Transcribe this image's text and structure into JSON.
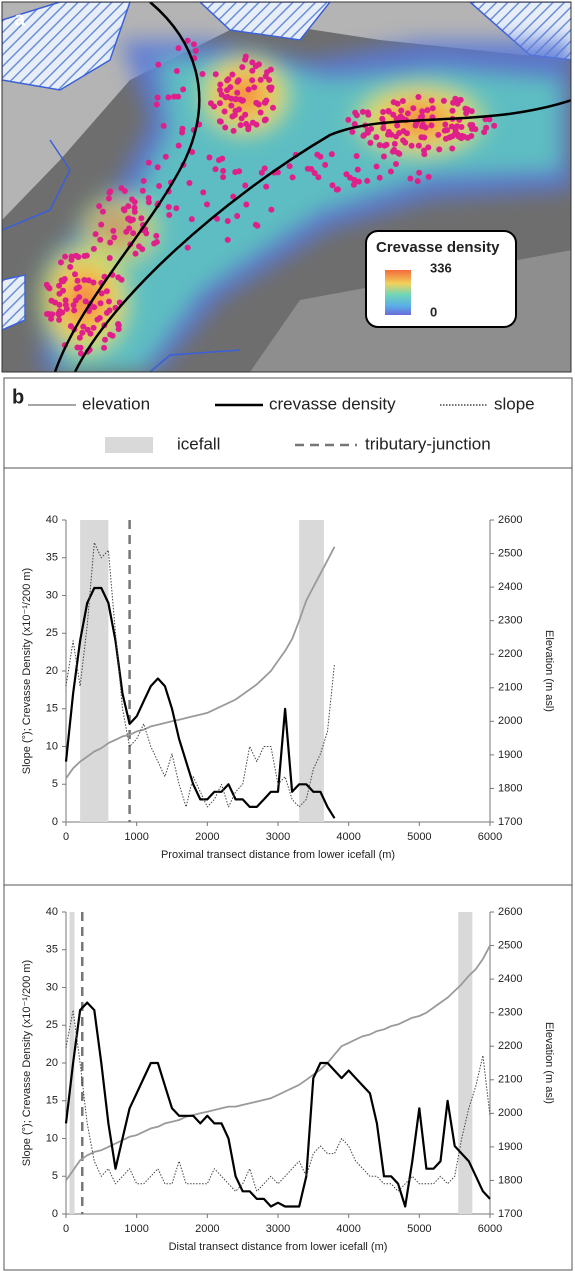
{
  "map": {
    "label": "a",
    "legend_title": "Crevasse density",
    "max": 336,
    "min": 0
  },
  "legend": {
    "label": "b",
    "items": [
      {
        "name": "elevation",
        "color": "#9a9a9a",
        "style": "solid"
      },
      {
        "name": "crevasse density",
        "color": "#000000",
        "style": "solid"
      },
      {
        "name": "slope",
        "color": "#444444",
        "style": "dotted"
      },
      {
        "name": "icefall",
        "color": "#d9d9d9",
        "style": "band"
      },
      {
        "name": "tributary-junction",
        "color": "#777777",
        "style": "dashed"
      }
    ]
  },
  "chart_data": [
    {
      "type": "line",
      "x_label": "Proximal transect distance from lower icefall (m)",
      "y_label": "Slope (°); Crevasse Density (x10⁻¹/200 m)",
      "y2_label": "Elevation (m asl)",
      "xlim": [
        0,
        6000
      ],
      "xticks": [
        0,
        1000,
        2000,
        3000,
        4000,
        5000,
        6000
      ],
      "ylim": [
        0,
        40
      ],
      "yticks": [
        0,
        5,
        10,
        15,
        20,
        25,
        30,
        35,
        40
      ],
      "y2lim": [
        1700,
        2600
      ],
      "y2ticks": [
        1700,
        1800,
        1900,
        2000,
        2100,
        2200,
        2300,
        2400,
        2500,
        2600
      ],
      "bands": [
        [
          200,
          600
        ],
        [
          3300,
          3650
        ]
      ],
      "band_color": "#d9d9d9",
      "junction": 900,
      "junction_color": "#777777",
      "x": [
        0,
        100,
        200,
        300,
        400,
        500,
        600,
        700,
        800,
        900,
        1000,
        1100,
        1200,
        1300,
        1400,
        1500,
        1600,
        1700,
        1800,
        1900,
        2000,
        2100,
        2200,
        2300,
        2400,
        2500,
        2600,
        2700,
        2800,
        2900,
        3000,
        3100,
        3200,
        3300,
        3400,
        3500,
        3600,
        3700,
        3800
      ],
      "series": [
        {
          "color": "#9a9a9a",
          "style": "solid",
          "axis": "y2",
          "values": [
            1830,
            1860,
            1880,
            1895,
            1910,
            1920,
            1935,
            1945,
            1955,
            1960,
            1970,
            1975,
            1985,
            1990,
            1995,
            2000,
            2005,
            2010,
            2015,
            2020,
            2025,
            2035,
            2045,
            2055,
            2065,
            2080,
            2095,
            2110,
            2130,
            2150,
            2180,
            2210,
            2245,
            2300,
            2360,
            2400,
            2440,
            2480,
            2520
          ]
        },
        {
          "color": "#000000",
          "style": "solid",
          "values": [
            8,
            17,
            24,
            29,
            31,
            31,
            29,
            24,
            17,
            13,
            14,
            16,
            18,
            19,
            18,
            15,
            11,
            8,
            5,
            3,
            3,
            4,
            4,
            5,
            3,
            3,
            2,
            2,
            3,
            4,
            4,
            15,
            4,
            5,
            5,
            4,
            4,
            2,
            0.5
          ]
        },
        {
          "color": "#444444",
          "style": "dotted",
          "values": [
            18,
            24,
            18,
            26,
            37,
            35,
            36,
            25,
            15,
            10,
            11,
            13,
            10,
            8,
            6,
            9,
            5,
            2,
            6,
            4,
            2,
            3,
            5,
            2,
            4,
            5,
            10,
            8,
            10,
            10,
            5,
            6,
            3,
            2,
            3,
            7,
            9,
            12,
            21
          ]
        }
      ]
    },
    {
      "type": "line",
      "x_label": "Distal transect distance from lower icefall (m)",
      "y_label": "Slope (°); Crevasse Density (x10⁻¹/200 m)",
      "y2_label": "Elevation (m asl)",
      "xlim": [
        0,
        6000
      ],
      "xticks": [
        0,
        1000,
        2000,
        3000,
        4000,
        5000,
        6000
      ],
      "ylim": [
        0,
        40
      ],
      "yticks": [
        0,
        5,
        10,
        15,
        20,
        25,
        30,
        35,
        40
      ],
      "y2lim": [
        1700,
        2600
      ],
      "y2ticks": [
        1700,
        1800,
        1900,
        2000,
        2100,
        2200,
        2300,
        2400,
        2500,
        2600
      ],
      "bands": [
        [
          50,
          120
        ],
        [
          5550,
          5750
        ]
      ],
      "band_color": "#d9d9d9",
      "junction": 230,
      "junction_color": "#777777",
      "x": [
        0,
        100,
        200,
        300,
        400,
        500,
        600,
        700,
        800,
        900,
        1000,
        1100,
        1200,
        1300,
        1400,
        1500,
        1600,
        1700,
        1800,
        1900,
        2000,
        2100,
        2200,
        2300,
        2400,
        2500,
        2600,
        2700,
        2800,
        2900,
        3000,
        3100,
        3200,
        3300,
        3400,
        3500,
        3600,
        3700,
        3800,
        3900,
        4000,
        4100,
        4200,
        4300,
        4400,
        4500,
        4600,
        4700,
        4800,
        4900,
        5000,
        5100,
        5200,
        5300,
        5400,
        5500,
        5600,
        5700,
        5800,
        5900,
        6000
      ],
      "series": [
        {
          "color": "#9a9a9a",
          "style": "solid",
          "axis": "y2",
          "values": [
            1800,
            1830,
            1860,
            1875,
            1885,
            1890,
            1900,
            1910,
            1920,
            1930,
            1935,
            1945,
            1955,
            1960,
            1970,
            1975,
            1980,
            1990,
            1995,
            2000,
            2005,
            2010,
            2015,
            2020,
            2020,
            2025,
            2030,
            2035,
            2040,
            2045,
            2055,
            2065,
            2075,
            2085,
            2100,
            2115,
            2130,
            2150,
            2175,
            2200,
            2210,
            2220,
            2230,
            2235,
            2245,
            2250,
            2260,
            2265,
            2275,
            2285,
            2290,
            2300,
            2315,
            2330,
            2345,
            2365,
            2385,
            2410,
            2430,
            2460,
            2500
          ]
        },
        {
          "color": "#000000",
          "style": "solid",
          "values": [
            12,
            20,
            27,
            28,
            27,
            20,
            12,
            6,
            10,
            14,
            16,
            18,
            20,
            20,
            17,
            14,
            13,
            13,
            13,
            12,
            13,
            12,
            12,
            10,
            5,
            3,
            3,
            2,
            2,
            1,
            1.5,
            1,
            1,
            1,
            5,
            18,
            20,
            20,
            19,
            18,
            19,
            18,
            17,
            16,
            12,
            5,
            5,
            4,
            1,
            7,
            14,
            6,
            6,
            7,
            15,
            9,
            8,
            7,
            5,
            3,
            2
          ]
        },
        {
          "color": "#444444",
          "style": "dotted",
          "values": [
            22,
            27,
            20,
            12,
            7,
            5,
            6,
            4,
            5,
            6,
            4,
            4,
            5,
            6,
            4,
            4,
            7,
            4,
            4,
            4,
            4,
            6,
            5,
            4,
            3,
            4,
            6,
            3,
            4,
            5,
            4,
            5,
            6,
            7,
            5,
            8,
            9,
            8,
            8,
            10,
            9,
            7,
            6,
            5,
            5,
            4,
            4,
            3,
            4,
            5,
            4,
            4,
            4,
            5,
            4,
            5,
            10,
            14,
            17,
            21,
            13
          ]
        }
      ]
    }
  ]
}
